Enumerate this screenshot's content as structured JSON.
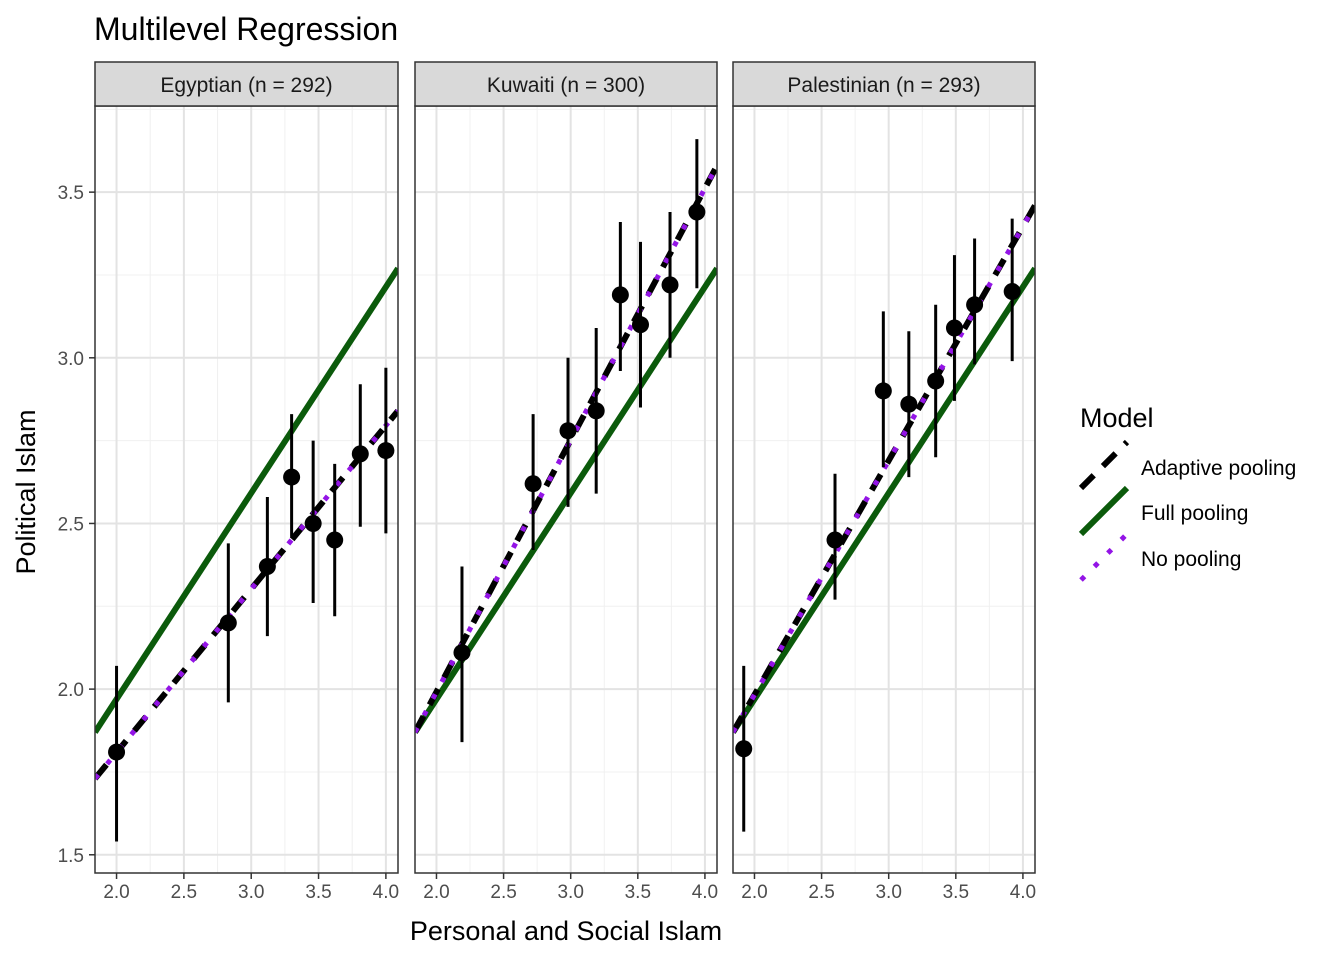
{
  "chart_data": {
    "type": "line",
    "title": "Multilevel Regression",
    "xlabel": "Personal and Social Islam",
    "ylabel": "Political Islam",
    "xlim": [
      1.84,
      4.09
    ],
    "ylim": [
      1.445,
      3.76
    ],
    "x_ticks": [
      2.0,
      2.5,
      3.0,
      3.5,
      4.0
    ],
    "x_tick_labels": [
      "2.0",
      "2.5",
      "3.0",
      "3.5",
      "4.0"
    ],
    "y_ticks": [
      1.5,
      2.0,
      2.5,
      3.0,
      3.5
    ],
    "y_tick_labels": [
      "1.5",
      "2.0",
      "2.5",
      "3.0",
      "3.5"
    ],
    "grid": true,
    "legend": {
      "title": "Model",
      "position": "right",
      "entries": [
        {
          "name": "Adaptive pooling",
          "color": "#000000",
          "style": "dashed"
        },
        {
          "name": "Full pooling",
          "color": "#0b5a0b",
          "style": "solid"
        },
        {
          "name": "No pooling",
          "color": "#9314e6",
          "style": "dotted"
        }
      ]
    },
    "facets": [
      {
        "label": "Egyptian (n = 292)",
        "lines": {
          "adaptive": [
            [
              1.84,
              1.73
            ],
            [
              4.09,
              2.84
            ]
          ],
          "full": [
            [
              1.84,
              1.87
            ],
            [
              4.09,
              3.27
            ]
          ],
          "no_pooling": [
            [
              1.84,
              1.73
            ],
            [
              4.09,
              2.84
            ]
          ]
        },
        "points": [
          {
            "x": 2.0,
            "y": 1.81,
            "lo": 1.54,
            "hi": 2.07
          },
          {
            "x": 2.83,
            "y": 2.2,
            "lo": 1.96,
            "hi": 2.44
          },
          {
            "x": 3.12,
            "y": 2.37,
            "lo": 2.16,
            "hi": 2.58
          },
          {
            "x": 3.3,
            "y": 2.64,
            "lo": 2.46,
            "hi": 2.83
          },
          {
            "x": 3.46,
            "y": 2.5,
            "lo": 2.26,
            "hi": 2.75
          },
          {
            "x": 3.62,
            "y": 2.45,
            "lo": 2.22,
            "hi": 2.68
          },
          {
            "x": 3.81,
            "y": 2.71,
            "lo": 2.49,
            "hi": 2.92
          },
          {
            "x": 4.0,
            "y": 2.72,
            "lo": 2.47,
            "hi": 2.97
          }
        ]
      },
      {
        "label": "Kuwaiti (n = 300)",
        "lines": {
          "adaptive": [
            [
              1.84,
              1.87
            ],
            [
              4.09,
              3.58
            ]
          ],
          "full": [
            [
              1.84,
              1.87
            ],
            [
              4.09,
              3.27
            ]
          ],
          "no_pooling": [
            [
              1.84,
              1.87
            ],
            [
              4.09,
              3.58
            ]
          ]
        },
        "points": [
          {
            "x": 2.19,
            "y": 2.11,
            "lo": 1.84,
            "hi": 2.37
          },
          {
            "x": 2.72,
            "y": 2.62,
            "lo": 2.42,
            "hi": 2.83
          },
          {
            "x": 2.98,
            "y": 2.78,
            "lo": 2.55,
            "hi": 3.0
          },
          {
            "x": 3.19,
            "y": 2.84,
            "lo": 2.59,
            "hi": 3.09
          },
          {
            "x": 3.37,
            "y": 3.19,
            "lo": 2.96,
            "hi": 3.41
          },
          {
            "x": 3.52,
            "y": 3.1,
            "lo": 2.85,
            "hi": 3.35
          },
          {
            "x": 3.74,
            "y": 3.22,
            "lo": 3.0,
            "hi": 3.44
          },
          {
            "x": 3.94,
            "y": 3.44,
            "lo": 3.21,
            "hi": 3.66
          }
        ]
      },
      {
        "label": "Palestinian (n = 293)",
        "lines": {
          "adaptive": [
            [
              1.84,
              1.87
            ],
            [
              4.09,
              3.46
            ]
          ],
          "full": [
            [
              1.84,
              1.87
            ],
            [
              4.09,
              3.27
            ]
          ],
          "no_pooling": [
            [
              1.84,
              1.87
            ],
            [
              4.09,
              3.46
            ]
          ]
        },
        "points": [
          {
            "x": 1.92,
            "y": 1.82,
            "lo": 1.57,
            "hi": 2.07
          },
          {
            "x": 2.6,
            "y": 2.45,
            "lo": 2.27,
            "hi": 2.65
          },
          {
            "x": 2.96,
            "y": 2.9,
            "lo": 2.67,
            "hi": 3.14
          },
          {
            "x": 3.15,
            "y": 2.86,
            "lo": 2.64,
            "hi": 3.08
          },
          {
            "x": 3.35,
            "y": 2.93,
            "lo": 2.7,
            "hi": 3.16
          },
          {
            "x": 3.49,
            "y": 3.09,
            "lo": 2.87,
            "hi": 3.31
          },
          {
            "x": 3.64,
            "y": 3.16,
            "lo": 2.98,
            "hi": 3.36
          },
          {
            "x": 3.92,
            "y": 3.2,
            "lo": 2.99,
            "hi": 3.42
          }
        ]
      }
    ]
  }
}
